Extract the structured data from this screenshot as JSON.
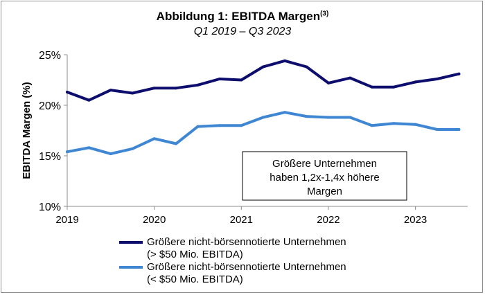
{
  "chart_data": {
    "type": "line",
    "title": "Abbildung 1: EBITDA Margen",
    "title_sup": "(3)",
    "subtitle": "Q1 2019 – Q3 2023",
    "ylabel": "EBITDA Margen (%)",
    "ylim": [
      10,
      25
    ],
    "yticks": [
      "10%",
      "15%",
      "20%",
      "25%"
    ],
    "yticks_values": [
      10,
      15,
      20,
      25
    ],
    "xlim": [
      2019.0,
      2023.6
    ],
    "xticks": [
      "2019",
      "2020",
      "2021",
      "2022",
      "2023"
    ],
    "xticks_values": [
      2019,
      2020,
      2021,
      2022,
      2023
    ],
    "grid": false,
    "legend": "bottom",
    "x": [
      2019.0,
      2019.25,
      2019.5,
      2019.75,
      2020.0,
      2020.25,
      2020.5,
      2020.75,
      2021.0,
      2021.25,
      2021.5,
      2021.75,
      2022.0,
      2022.25,
      2022.5,
      2022.75,
      2023.0,
      2023.25,
      2023.5
    ],
    "series": [
      {
        "name_line1": "Größere nicht-börsennotierte Unternehmen",
        "name_line2": "(> $50 Mio. EBITDA)",
        "color": "#0d0d6e",
        "values": [
          21.3,
          20.5,
          21.5,
          21.2,
          21.7,
          21.7,
          22.0,
          22.6,
          22.5,
          23.8,
          24.4,
          23.8,
          22.2,
          22.7,
          21.8,
          21.8,
          22.3,
          22.6,
          23.1
        ]
      },
      {
        "name_line1": "Größere nicht-börsennotierte Unternehmen",
        "name_line2": "(< $50 Mio. EBITDA)",
        "color": "#3f86d3",
        "values": [
          15.4,
          15.8,
          15.2,
          15.7,
          16.7,
          16.2,
          17.9,
          18.0,
          18.0,
          18.8,
          19.3,
          18.9,
          18.8,
          18.8,
          18.0,
          18.2,
          18.1,
          17.6,
          17.6
        ]
      }
    ],
    "annotation": [
      "Größere Unternehmen",
      "haben 1,2x-1,4x höhere",
      "Margen"
    ]
  }
}
